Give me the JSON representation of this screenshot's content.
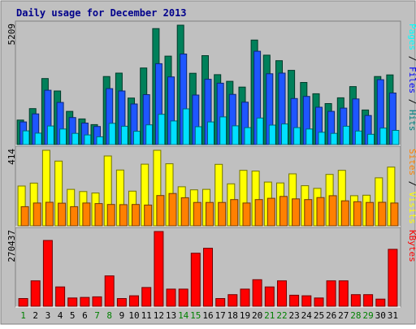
{
  "chart_data": {
    "type": "bar",
    "title": "Daily usage for December 2013",
    "background": "#c0c0c0",
    "page_background": "#ffffff",
    "days": [
      "1",
      "2",
      "3",
      "4",
      "5",
      "6",
      "7",
      "8",
      "9",
      "10",
      "11",
      "12",
      "13",
      "14",
      "15",
      "16",
      "17",
      "18",
      "19",
      "20",
      "21",
      "22",
      "23",
      "24",
      "25",
      "26",
      "27",
      "28",
      "29",
      "30",
      "31"
    ],
    "weekend_days": [
      "1",
      "7",
      "8",
      "14",
      "15",
      "21",
      "22",
      "28",
      "29"
    ],
    "day_color": "#000000",
    "weekend_color": "#008000",
    "panels": [
      {
        "id": "pages-files-hits",
        "ymax_label": "5209",
        "ylim": [
          0,
          5209
        ],
        "legend": [
          {
            "text": "Pages",
            "color": "#00ffff"
          },
          {
            "text": " / ",
            "color": "#000000"
          },
          {
            "text": "Files",
            "color": "#0000ff"
          },
          {
            "text": " / ",
            "color": "#000000"
          },
          {
            "text": "Hits",
            "color": "#008080"
          }
        ],
        "series": [
          {
            "name": "Hits",
            "color": "#00805a",
            "values": [
              1070,
              1570,
              2880,
              2340,
              1450,
              1120,
              870,
              2970,
              3120,
              2030,
              3340,
              5060,
              3860,
              5209,
              3110,
              3880,
              3050,
              2760,
              2510,
              4560,
              3900,
              3660,
              3240,
              2710,
              2220,
              1790,
              2040,
              2530,
              1510,
              2970,
              3040
            ]
          },
          {
            "name": "Files",
            "color": "#1e56ff",
            "values": [
              990,
              1340,
              2370,
              1840,
              1180,
              940,
              790,
              2440,
              2340,
              1770,
              2180,
              3530,
              2950,
              3950,
              2160,
              2850,
              2680,
              2190,
              1850,
              4070,
              3090,
              3120,
              2010,
              2100,
              1630,
              1450,
              1590,
              1990,
              1270,
              2830,
              2250
            ]
          },
          {
            "name": "Pages",
            "color": "#00e0ff",
            "values": [
              600,
              500,
              810,
              680,
              490,
              420,
              340,
              930,
              800,
              580,
              860,
              1320,
              1030,
              1560,
              780,
              990,
              1210,
              820,
              740,
              1160,
              850,
              900,
              740,
              680,
              540,
              490,
              800,
              590,
              450,
              720,
              620
            ]
          }
        ]
      },
      {
        "id": "sites-visits",
        "ymax_label": "414",
        "ylim": [
          0,
          414
        ],
        "legend": [
          {
            "text": "Sites",
            "color": "#ff8000"
          },
          {
            "text": " / ",
            "color": "#000000"
          },
          {
            "text": "Visits",
            "color": "#ffff00"
          }
        ],
        "series": [
          {
            "name": "Visits",
            "color": "#ffff00",
            "values": [
              218,
              234,
              414,
              355,
              200,
              188,
              180,
              383,
              306,
              190,
              338,
              414,
              340,
              214,
              197,
              200,
              337,
              230,
              304,
              300,
              240,
              235,
              285,
              220,
              205,
              282,
              304,
              165,
              168,
              263,
              322
            ]
          },
          {
            "name": "Sites",
            "color": "#ff8000",
            "values": [
              105,
              125,
              129,
              124,
              105,
              125,
              122,
              117,
              116,
              117,
              114,
              166,
              177,
              154,
              128,
              128,
              128,
              144,
              125,
              144,
              151,
              161,
              148,
              144,
              155,
              165,
              137,
              132,
              128,
              129,
              125
            ]
          }
        ]
      },
      {
        "id": "kbytes",
        "ymax_label": "270437",
        "ylim": [
          0,
          270437
        ],
        "legend": [
          {
            "text": "KBytes",
            "color": "#ff0000"
          }
        ],
        "series": [
          {
            "name": "KBytes",
            "color": "#ff0000",
            "values": [
              28000,
              92000,
              238000,
              70000,
              30000,
              32000,
              34000,
              110000,
              28000,
              38000,
              68000,
              270437,
              62000,
              62000,
              192000,
              210000,
              28000,
              42000,
              62000,
              96000,
              70000,
              92000,
              40000,
              38000,
              30000,
              92000,
              92000,
              42000,
              42000,
              26000,
              206000
            ]
          }
        ]
      }
    ]
  }
}
